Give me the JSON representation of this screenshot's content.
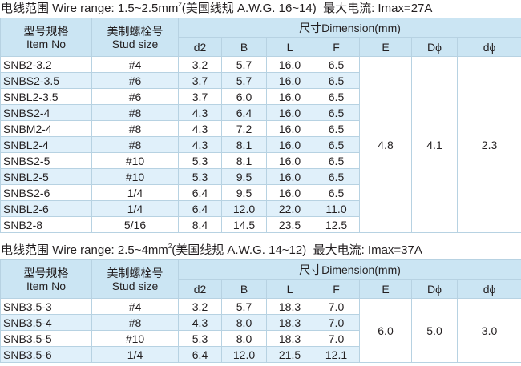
{
  "sections": [
    {
      "heading": {
        "label": "电线范围 Wire range: 1.5~2.5mm",
        "sup": "2",
        "awg": "(美国线规 A.W.G. 16~14)",
        "current": "最大电流: Imax=27A"
      },
      "header": {
        "item_cn": "型号规格",
        "item_en": "Item No",
        "stud_cn": "美制螺栓号",
        "stud_en": "Stud size",
        "dimension": "尺寸Dimension(mm)",
        "columns": [
          "d2",
          "B",
          "L",
          "F",
          "E",
          "Dϕ",
          "dϕ"
        ]
      },
      "rows": [
        [
          "SNB2-3.2",
          "#4",
          "3.2",
          "5.7",
          "16.0",
          "6.5"
        ],
        [
          "SNBS2-3.5",
          "#6",
          "3.7",
          "5.7",
          "16.0",
          "6.5"
        ],
        [
          "SNBL2-3.5",
          "#6",
          "3.7",
          "6.0",
          "16.0",
          "6.5"
        ],
        [
          "SNBS2-4",
          "#8",
          "4.3",
          "6.4",
          "16.0",
          "6.5"
        ],
        [
          "SNBM2-4",
          "#8",
          "4.3",
          "7.2",
          "16.0",
          "6.5"
        ],
        [
          "SNBL2-4",
          "#8",
          "4.3",
          "8.1",
          "16.0",
          "6.5"
        ],
        [
          "SNBS2-5",
          "#10",
          "5.3",
          "8.1",
          "16.0",
          "6.5"
        ],
        [
          "SNBL2-5",
          "#10",
          "5.3",
          "9.5",
          "16.0",
          "6.5"
        ],
        [
          "SNBS2-6",
          "1/4",
          "6.4",
          "9.5",
          "16.0",
          "6.5"
        ],
        [
          "SNBL2-6",
          "1/4",
          "6.4",
          "12.0",
          "22.0",
          "11.0"
        ],
        [
          "SNB2-8",
          "5/16",
          "8.4",
          "14.5",
          "23.5",
          "12.5"
        ]
      ],
      "merged": [
        "4.8",
        "4.1",
        "2.3"
      ]
    },
    {
      "heading": {
        "label": "电线范围 Wire range: 2.5~4mm",
        "sup": "2",
        "awg": "(美国线规 A.W.G. 14~12)",
        "current": "最大电流: Imax=37A"
      },
      "header": {
        "item_cn": "型号规格",
        "item_en": "Item No",
        "stud_cn": "美制螺栓号",
        "stud_en": "Stud size",
        "dimension": "尺寸Dimension(mm)",
        "columns": [
          "d2",
          "B",
          "L",
          "F",
          "E",
          "Dϕ",
          "dϕ"
        ]
      },
      "rows": [
        [
          "SNB3.5-3",
          "#4",
          "3.2",
          "5.7",
          "18.3",
          "7.0"
        ],
        [
          "SNB3.5-4",
          "#8",
          "4.3",
          "8.0",
          "18.3",
          "7.0"
        ],
        [
          "SNB3.5-5",
          "#10",
          "5.3",
          "8.0",
          "18.3",
          "7.0"
        ],
        [
          "SNB3.5-6",
          "1/4",
          "6.4",
          "12.0",
          "21.5",
          "12.1"
        ]
      ],
      "merged": [
        "6.0",
        "5.0",
        "3.0"
      ]
    }
  ]
}
